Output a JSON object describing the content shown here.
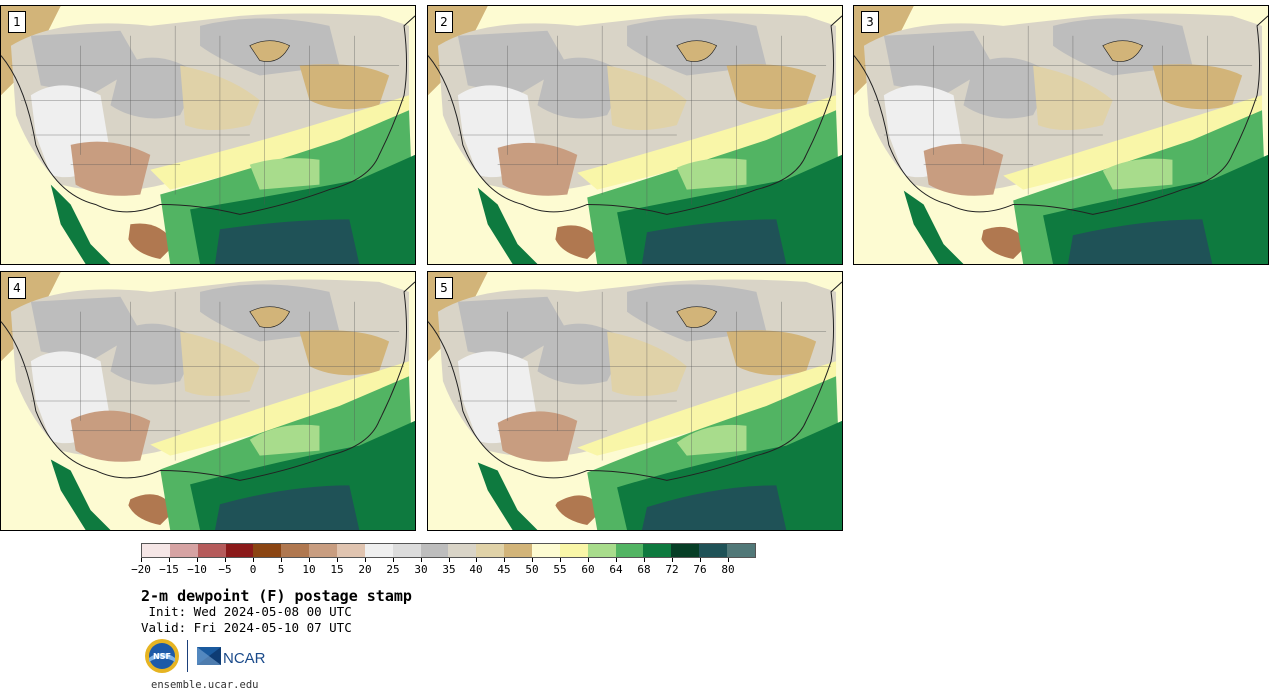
{
  "panels": [
    {
      "member": "1"
    },
    {
      "member": "2"
    },
    {
      "member": "3"
    },
    {
      "member": "4"
    },
    {
      "member": "5"
    }
  ],
  "colorbar": {
    "colors": [
      "#f5e6e6",
      "#d6a3a3",
      "#b55b5b",
      "#8b1a1a",
      "#8b4513",
      "#b07850",
      "#c89d80",
      "#e0c4b0",
      "#efefef",
      "#dcdcdc",
      "#bdbdbd",
      "#d9d4c7",
      "#e0d2a8",
      "#d2b479",
      "#fdfbd2",
      "#f9f6a8",
      "#a8dc8c",
      "#52b463",
      "#0e7a3f",
      "#063e26",
      "#1f5257",
      "#517878"
    ],
    "tick_labels": [
      "−20",
      "−15",
      "−10",
      "−5",
      "0",
      "5",
      "10",
      "15",
      "20",
      "25",
      "30",
      "35",
      "40",
      "45",
      "50",
      "55",
      "60",
      "64",
      "68",
      "72",
      "76",
      "80"
    ]
  },
  "title": "2-m dewpoint (F) postage stamp",
  "init": " Init: Wed 2024-05-08 00 UTC",
  "valid": "Valid: Fri 2024-05-10 07 UTC",
  "footer": {
    "url": "ensemble.ucar.edu",
    "nsf_label": "NSF",
    "ncar_label": "NCAR"
  }
}
